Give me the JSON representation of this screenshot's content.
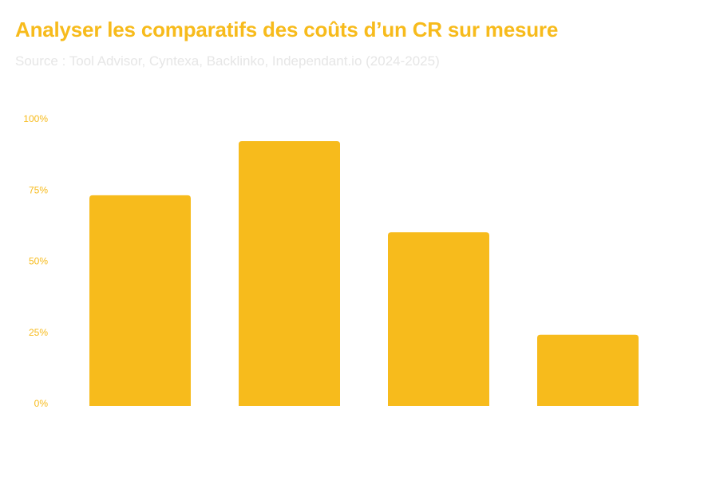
{
  "title": "Analyser les comparatifs des coûts d’un CR sur mesure",
  "subtitle": "Source : Tool Advisor, Cyntexa, Backlinko, Independant.io (2024-2025)",
  "colors": {
    "bar": "#f7bb1c",
    "title": "#f7bb1c",
    "subtitle": "#e6e6e6",
    "tick_label": "#f7bb1c"
  },
  "chart_data": {
    "type": "bar",
    "title": "Analyser les comparatifs des coûts d’un CR sur mesure",
    "subtitle": "Source : Tool Advisor, Cyntexa, Backlinko, Independant.io (2024-2025)",
    "categories": [
      "",
      "",
      "",
      ""
    ],
    "values": [
      74,
      93,
      61,
      25
    ],
    "xlabel": "",
    "ylabel": "",
    "ylim": [
      0,
      100
    ],
    "yticks": [
      "0%",
      "25%",
      "50%",
      "75%",
      "100%"
    ],
    "grid": false,
    "legend": "none"
  }
}
